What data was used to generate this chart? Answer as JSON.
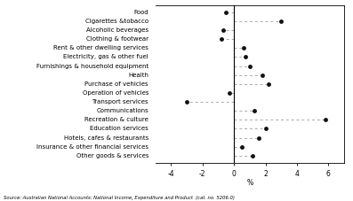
{
  "categories": [
    "Food",
    "Cigarettes &tobacco",
    "Alcoholic beverages",
    "Clothing & footwear",
    "Rent & other dwelling services",
    "Electricity, gas & other fuel",
    "Furnishings & household equipment",
    "Health",
    "Purchase of vehicles",
    "Operation of vehicles",
    "Transport services",
    "Communications",
    "Recreation & culture",
    "Education services",
    "Hotels, cafes & restaurants",
    "Insurance & other financial services",
    "Other goods & services"
  ],
  "values": [
    -0.5,
    3.0,
    -0.7,
    -0.8,
    0.6,
    0.7,
    1.0,
    1.8,
    2.2,
    -0.3,
    -3.0,
    1.3,
    5.8,
    2.0,
    1.6,
    0.5,
    1.2
  ],
  "xlim": [
    -5,
    7
  ],
  "xticks": [
    -4,
    -2,
    0,
    2,
    4,
    6
  ],
  "xlabel": "%",
  "source": "Source: Australian National Accounts: National Income, Expenditure and Product  (cat. no. 5206.0)",
  "dot_color": "#111111",
  "line_color": "#aaaaaa",
  "background": "#ffffff",
  "label_fontsize": 5.0,
  "tick_fontsize": 5.5,
  "source_fontsize": 3.8
}
